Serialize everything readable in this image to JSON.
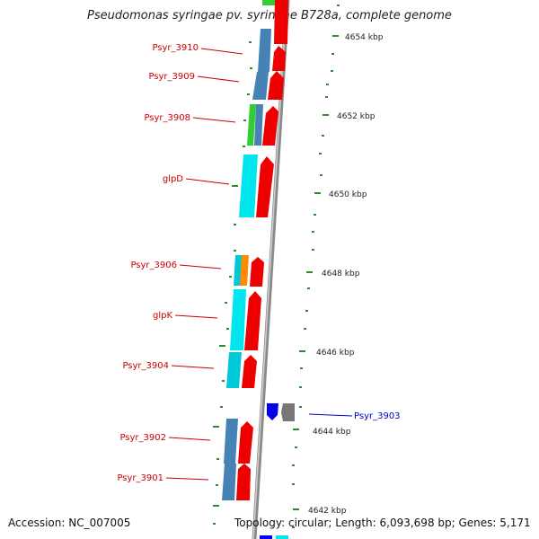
{
  "title": "Pseudomonas syringae pv. syringae B728a, complete genome",
  "accession_text": "Accession: NC_007005",
  "topology_text": "Topology: circular; Length: 6,093,698 bp; Genes: 5,171",
  "kbp_labels": [
    "4654 kbp",
    "4652 kbp",
    "4650 kbp",
    "4648 kbp",
    "4646 kbp",
    "4644 kbp",
    "4642 kbp"
  ],
  "gene_labels": [
    "Psyr_3910",
    "Psyr_3909",
    "Psyr_3908",
    "glpD",
    "Psyr_3906",
    "glpK",
    "Psyr_3904",
    "Psyr_3903",
    "Psyr_3902",
    "Psyr_3901"
  ],
  "colors": {
    "label_red": "#cc0000",
    "label_blue": "#0000cc",
    "tick_green": "#2e8b2e",
    "cds_red": "#ee0000",
    "cyan": "#00e5ee",
    "steelblue": "#4682b4",
    "green": "#33cc33",
    "orange": "#ff8c00",
    "blue": "#0000ff",
    "gray": "#777777",
    "backbone": "#999999"
  }
}
